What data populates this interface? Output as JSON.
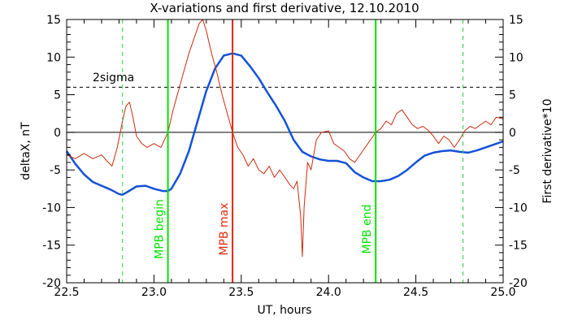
{
  "chart_data": {
    "type": "line",
    "title": "X-variations and first derivative, 12.10.2010",
    "xlabel": "UT, hours",
    "ylabel_left": "deltaX, nT",
    "ylabel_right": "First derivative*10",
    "xlim": [
      22.5,
      25.0
    ],
    "ylim": [
      -20,
      15
    ],
    "x_ticks": [
      "22.5",
      "23.0",
      "23.5",
      "24.0",
      "24.5",
      "25.0"
    ],
    "y_ticks_left": [
      "-20",
      "-15",
      "-10",
      "-5",
      "0",
      "5",
      "10",
      "15"
    ],
    "y_ticks_right": [
      "-20",
      "-15",
      "-10",
      "-5",
      "0",
      "5",
      "10",
      "15"
    ],
    "zero_line": 0,
    "threshold": {
      "y": 6,
      "label": "2sigma"
    },
    "colors": {
      "series_deltaX": "#1452d6",
      "series_derivative": "#cc2a10",
      "mpb_lines": "#00e400",
      "dashed_green": "#2ecc40",
      "max_line": "#e02a0c",
      "right_axis_label": "#e02a0c",
      "left_axis_label": "#1452d6"
    },
    "vertical_markers": [
      {
        "x": 22.82,
        "style": "dashed",
        "color_key": "dashed_green",
        "label": ""
      },
      {
        "x": 23.08,
        "style": "solid",
        "color_key": "mpb_lines",
        "label": "MPB begin"
      },
      {
        "x": 23.45,
        "style": "solid",
        "color_key": "max_line",
        "label": "MPB max"
      },
      {
        "x": 24.27,
        "style": "solid",
        "color_key": "mpb_lines",
        "label": "MPB end"
      },
      {
        "x": 24.77,
        "style": "dashed",
        "color_key": "dashed_green",
        "label": ""
      }
    ],
    "series": [
      {
        "name": "deltaX",
        "axis": "left",
        "x": [
          22.5,
          22.55,
          22.6,
          22.65,
          22.7,
          22.75,
          22.8,
          22.82,
          22.85,
          22.9,
          22.95,
          23.0,
          23.05,
          23.08,
          23.1,
          23.15,
          23.2,
          23.25,
          23.3,
          23.35,
          23.4,
          23.45,
          23.5,
          23.55,
          23.6,
          23.65,
          23.7,
          23.75,
          23.8,
          23.85,
          23.9,
          23.95,
          24.0,
          24.05,
          24.1,
          24.15,
          24.2,
          24.25,
          24.3,
          24.35,
          24.4,
          24.45,
          24.5,
          24.55,
          24.6,
          24.65,
          24.7,
          24.75,
          24.8,
          24.85,
          24.9,
          24.95,
          25.0
        ],
        "y": [
          -2.5,
          -4.2,
          -5.6,
          -6.6,
          -7.1,
          -7.6,
          -8.2,
          -8.3,
          -7.9,
          -7.2,
          -7.1,
          -7.5,
          -7.8,
          -7.8,
          -7.5,
          -5.5,
          -2.5,
          1.5,
          5.5,
          8.5,
          10.2,
          10.5,
          10.2,
          8.8,
          7.2,
          5.3,
          3.5,
          1.5,
          -1.0,
          -2.6,
          -3.2,
          -3.6,
          -3.8,
          -3.8,
          -4.1,
          -5.3,
          -6.0,
          -6.5,
          -6.5,
          -6.3,
          -5.8,
          -5.0,
          -4.0,
          -3.1,
          -2.7,
          -2.5,
          -2.4,
          -2.6,
          -2.7,
          -2.4,
          -2.0,
          -1.6,
          -1.2
        ]
      },
      {
        "name": "First derivative*10",
        "axis": "right",
        "x": [
          22.5,
          22.55,
          22.6,
          22.65,
          22.7,
          22.73,
          22.76,
          22.79,
          22.82,
          22.84,
          22.86,
          22.88,
          22.9,
          22.93,
          22.96,
          23.0,
          23.04,
          23.08,
          23.11,
          23.14,
          23.17,
          23.2,
          23.23,
          23.26,
          23.28,
          23.3,
          23.33,
          23.36,
          23.39,
          23.42,
          23.45,
          23.48,
          23.51,
          23.54,
          23.57,
          23.6,
          23.63,
          23.66,
          23.69,
          23.72,
          23.75,
          23.78,
          23.8,
          23.82,
          23.84,
          23.85,
          23.86,
          23.88,
          23.9,
          23.93,
          23.96,
          24.0,
          24.03,
          24.06,
          24.09,
          24.12,
          24.15,
          24.18,
          24.21,
          24.24,
          24.27,
          24.3,
          24.33,
          24.36,
          24.39,
          24.42,
          24.45,
          24.48,
          24.51,
          24.54,
          24.57,
          24.6,
          24.63,
          24.66,
          24.69,
          24.72,
          24.75,
          24.78,
          24.81,
          24.84,
          24.87,
          24.9,
          24.93,
          24.96,
          25.0
        ],
        "y": [
          -3.0,
          -3.5,
          -2.8,
          -3.5,
          -3.0,
          -3.8,
          -4.5,
          -2.0,
          1.5,
          3.5,
          4.0,
          2.0,
          -0.5,
          -1.5,
          -2.0,
          -1.5,
          -2.0,
          0.0,
          3.0,
          5.5,
          8.0,
          10.5,
          12.5,
          14.5,
          15.0,
          13.5,
          10.5,
          8.0,
          5.0,
          2.5,
          0.0,
          -2.0,
          -3.0,
          -4.5,
          -3.5,
          -5.0,
          -5.5,
          -4.5,
          -6.0,
          -5.0,
          -6.0,
          -7.0,
          -7.5,
          -6.5,
          -11.0,
          -16.5,
          -10.0,
          -4.0,
          -5.0,
          -1.0,
          0.0,
          0.2,
          -1.5,
          -2.0,
          -2.5,
          -3.5,
          -4.0,
          -3.0,
          -2.0,
          -1.0,
          0.0,
          0.5,
          1.5,
          1.0,
          2.5,
          3.0,
          2.0,
          1.0,
          0.5,
          0.8,
          0.3,
          -0.5,
          -1.5,
          -0.5,
          -1.0,
          -2.0,
          -1.0,
          0.2,
          0.8,
          0.5,
          1.0,
          1.5,
          1.0,
          2.0,
          1.8
        ]
      }
    ]
  }
}
